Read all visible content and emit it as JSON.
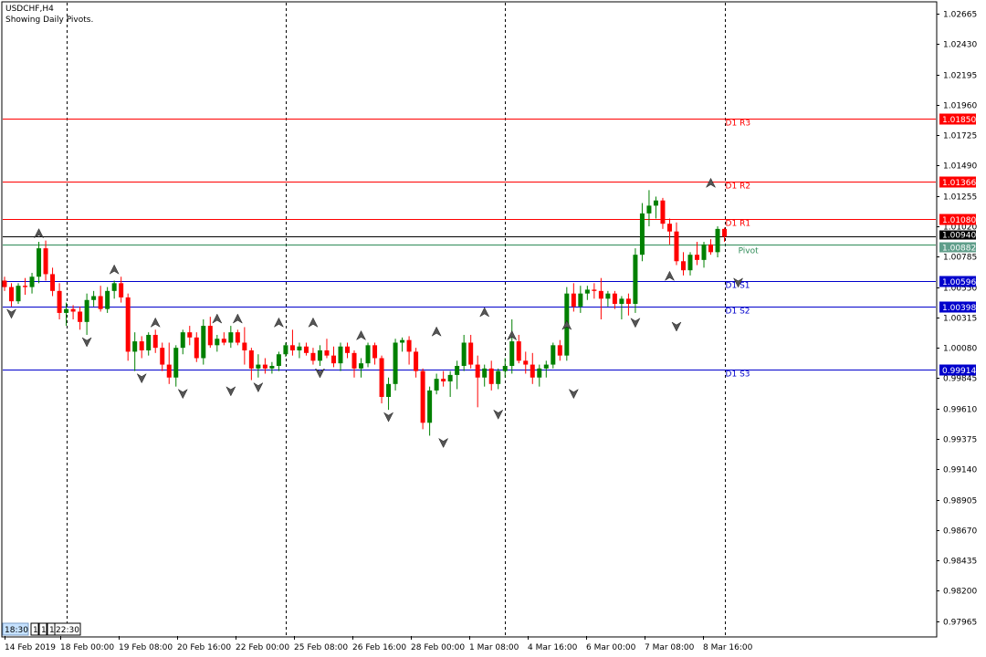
{
  "header": {
    "title": "USDCHF,H4",
    "subtitle": "Showing Daily Pivots."
  },
  "chart_data": {
    "type": "candlestick",
    "symbol": "USDCHF",
    "timeframe": "H4",
    "ylim": [
      0.9785,
      1.0275
    ],
    "y_ticks": [
      "1.02665",
      "1.02430",
      "1.02195",
      "1.01960",
      "1.01725",
      "1.01490",
      "1.01255",
      "1.01020",
      "1.00785",
      "1.00550",
      "1.00315",
      "1.00080",
      "0.99845",
      "0.99610",
      "0.99375",
      "0.99140",
      "0.98905",
      "0.98670",
      "0.98435",
      "0.98200",
      "0.97965"
    ],
    "x_ticks": [
      "14 Feb 2019",
      "18 Feb 00:00",
      "19 Feb 08:00",
      "20 Feb 16:00",
      "22 Feb 00:00",
      "25 Feb 08:00",
      "26 Feb 16:00",
      "28 Feb 00:00",
      "1 Mar 08:00",
      "4 Mar 16:00",
      "6 Mar 00:00",
      "7 Mar 08:00",
      "8 Mar 16:00"
    ],
    "bull_color": "#008000",
    "bear_color": "#ff0000",
    "candles": [
      [
        1.006,
        1.0063,
        1.0052,
        1.0055
      ],
      [
        1.0055,
        1.0058,
        1.004,
        1.0044
      ],
      [
        1.0044,
        1.0058,
        1.0042,
        1.0056
      ],
      [
        1.0056,
        1.0062,
        1.0049,
        1.0055
      ],
      [
        1.0055,
        1.0066,
        1.005,
        1.0063
      ],
      [
        1.0063,
        1.009,
        1.0058,
        1.0085
      ],
      [
        1.0085,
        1.0091,
        1.006,
        1.0065
      ],
      [
        1.0065,
        1.007,
        1.0048,
        1.0052
      ],
      [
        1.0052,
        1.0058,
        1.003,
        1.0035
      ],
      [
        1.0035,
        1.0043,
        1.0025,
        1.0038
      ],
      [
        1.0038,
        1.0041,
        1.003,
        1.0036
      ],
      [
        1.0036,
        1.004,
        1.0022,
        1.0028
      ],
      [
        1.0028,
        1.005,
        1.0018,
        1.0045
      ],
      [
        1.0045,
        1.0052,
        1.004,
        1.0048
      ],
      [
        1.0048,
        1.0056,
        1.0036,
        1.0038
      ],
      [
        1.0038,
        1.0055,
        1.0035,
        1.0052
      ],
      [
        1.0052,
        1.006,
        1.0046,
        1.0058
      ],
      [
        1.0058,
        1.0063,
        1.0043,
        1.0047
      ],
      [
        1.0047,
        1.005,
        0.9998,
        1.0005
      ],
      [
        1.0005,
        1.002,
        0.999,
        1.0013
      ],
      [
        1.0013,
        1.0017,
        1.0,
        1.0006
      ],
      [
        1.0006,
        1.002,
        1.0002,
        1.0018
      ],
      [
        1.0018,
        1.0022,
        1.0004,
        1.0008
      ],
      [
        1.0008,
        1.0012,
        0.999,
        0.9995
      ],
      [
        0.9995,
        1.0012,
        0.998,
        0.9985
      ],
      [
        0.9985,
        1.001,
        0.9978,
        1.0008
      ],
      [
        1.0008,
        1.0022,
        1.0003,
        1.002
      ],
      [
        1.002,
        1.0025,
        1.001,
        1.0016
      ],
      [
        1.0016,
        1.002,
        0.9997,
        1.0
      ],
      [
        1.0,
        1.003,
        0.9995,
        1.0025
      ],
      [
        1.0025,
        1.0032,
        1.0008,
        1.001
      ],
      [
        1.001,
        1.0018,
        1.0005,
        1.0015
      ],
      [
        1.0015,
        1.002,
        1.001,
        1.0012
      ],
      [
        1.0012,
        1.0025,
        1.0008,
        1.002
      ],
      [
        1.002,
        1.0022,
        1.001,
        1.0012
      ],
      [
        1.0012,
        1.0024,
        0.9995,
        1.0006
      ],
      [
        1.0006,
        1.0008,
        0.9983,
        0.9992
      ],
      [
        0.9992,
        1.0003,
        0.9985,
        0.9995
      ],
      [
        0.9995,
        1.0,
        0.9988,
        0.9992
      ],
      [
        0.9992,
        0.9997,
        0.9988,
        0.9994
      ],
      [
        0.9994,
        1.0005,
        0.999,
        1.0003
      ],
      [
        1.0003,
        1.0012,
        1.0001,
        1.001
      ],
      [
        1.001,
        1.0022,
        1.0002,
        1.0006
      ],
      [
        1.0006,
        1.0012,
        1.0,
        1.0009
      ],
      [
        1.0009,
        1.0012,
        1.0002,
        1.0004
      ],
      [
        1.0004,
        1.0008,
        0.9995,
        0.9998
      ],
      [
        0.9998,
        1.001,
        0.9994,
        1.0006
      ],
      [
        1.0006,
        1.0015,
        1.0,
        1.0002
      ],
      [
        1.0002,
        1.0009,
        0.9993,
        0.9996
      ],
      [
        0.9996,
        1.0012,
        0.999,
        1.0009
      ],
      [
        1.0009,
        1.0012,
        1.0,
        1.0004
      ],
      [
        1.0004,
        1.0006,
        0.9985,
        0.9992
      ],
      [
        0.9992,
        1.0,
        0.9985,
        0.9996
      ],
      [
        0.9996,
        1.0012,
        0.9993,
        1.001
      ],
      [
        1.001,
        1.0012,
        0.9995,
        1.0
      ],
      [
        1.0,
        1.0002,
        0.9965,
        0.997
      ],
      [
        0.997,
        0.9985,
        0.996,
        0.998
      ],
      [
        0.998,
        1.0015,
        0.9975,
        1.0012
      ],
      [
        1.0012,
        1.0016,
        1.0005,
        1.0014
      ],
      [
        1.0014,
        1.0017,
        0.9995,
        1.0005
      ],
      [
        1.0005,
        1.0008,
        0.9985,
        0.999
      ],
      [
        0.999,
        0.9992,
        0.9945,
        0.995
      ],
      [
        0.995,
        0.9978,
        0.994,
        0.9975
      ],
      [
        0.9975,
        0.9988,
        0.9972,
        0.9984
      ],
      [
        0.9984,
        0.999,
        0.9978,
        0.9982
      ],
      [
        0.9982,
        0.999,
        0.997,
        0.9987
      ],
      [
        0.9987,
        0.9998,
        0.9976,
        0.9994
      ],
      [
        0.9994,
        1.0018,
        0.999,
        1.0012
      ],
      [
        1.0012,
        1.0018,
        0.9992,
        0.9995
      ],
      [
        0.9995,
        1.0002,
        0.9962,
        0.9985
      ],
      [
        0.9985,
        0.9995,
        0.9978,
        0.9992
      ],
      [
        0.9992,
        0.9998,
        0.9975,
        0.998
      ],
      [
        0.998,
        0.9992,
        0.9976,
        0.999
      ],
      [
        0.999,
        1.0,
        0.9985,
        0.9994
      ],
      [
        0.9994,
        1.003,
        0.9988,
        1.0013
      ],
      [
        1.0013,
        1.0018,
        0.9996,
        0.9998
      ],
      [
        0.9998,
        1.0005,
        0.9988,
        0.9995
      ],
      [
        0.9995,
        1.0004,
        0.998,
        0.9985
      ],
      [
        0.9985,
        0.9995,
        0.9978,
        0.9992
      ],
      [
        0.9992,
        0.9998,
        0.9985,
        0.9995
      ],
      [
        0.9995,
        1.0012,
        0.9992,
        1.001
      ],
      [
        1.001,
        1.0014,
        0.9998,
        1.0002
      ],
      [
        1.0002,
        1.0055,
        0.9998,
        1.005
      ],
      [
        1.005,
        1.0058,
        1.0036,
        1.004
      ],
      [
        1.004,
        1.0056,
        1.0035,
        1.005
      ],
      [
        1.005,
        1.0056,
        1.0045,
        1.0053
      ],
      [
        1.0053,
        1.0058,
        1.0046,
        1.0052
      ],
      [
        1.0052,
        1.0062,
        1.003,
        1.0046
      ],
      [
        1.0046,
        1.0052,
        1.004,
        1.005
      ],
      [
        1.005,
        1.0052,
        1.0038,
        1.0042
      ],
      [
        1.0042,
        1.0048,
        1.003,
        1.0046
      ],
      [
        1.0046,
        1.005,
        1.0033,
        1.0042
      ],
      [
        1.0042,
        1.0085,
        1.0035,
        1.008
      ],
      [
        1.008,
        1.012,
        1.0075,
        1.0112
      ],
      [
        1.0112,
        1.013,
        1.0102,
        1.0118
      ],
      [
        1.0118,
        1.0125,
        1.0108,
        1.0122
      ],
      [
        1.0122,
        1.0124,
        1.01,
        1.0104
      ],
      [
        1.0104,
        1.0108,
        1.0088,
        1.0098
      ],
      [
        1.0098,
        1.0105,
        1.0072,
        1.0075
      ],
      [
        1.0075,
        1.0082,
        1.0064,
        1.0068
      ],
      [
        1.0068,
        1.0082,
        1.0064,
        1.008
      ],
      [
        1.008,
        1.009,
        1.0072,
        1.0076
      ],
      [
        1.0076,
        1.009,
        1.007,
        1.0088
      ],
      [
        1.0088,
        1.0092,
        1.008,
        1.0082
      ],
      [
        1.0082,
        1.0102,
        1.0078,
        1.01
      ],
      [
        1.01,
        1.0101,
        1.009,
        1.0094
      ]
    ],
    "fractals_up": [
      [
        5,
        1.0091
      ],
      [
        16,
        1.0063
      ],
      [
        22,
        1.0022
      ],
      [
        31,
        1.0025
      ],
      [
        34,
        1.0025
      ],
      [
        40,
        1.0022
      ],
      [
        45,
        1.0022
      ],
      [
        52,
        1.0012
      ],
      [
        63,
        1.0015
      ],
      [
        70,
        1.003
      ],
      [
        74,
        1.0012
      ],
      [
        82,
        1.002
      ],
      [
        97,
        1.0058
      ],
      [
        103,
        1.013
      ]
    ],
    "fractals_down": [
      [
        1,
        1.004
      ],
      [
        12,
        1.0018
      ],
      [
        20,
        0.999
      ],
      [
        26,
        0.9978
      ],
      [
        33,
        0.998
      ],
      [
        37,
        0.9983
      ],
      [
        46,
        0.9994
      ],
      [
        56,
        0.996
      ],
      [
        64,
        0.994
      ],
      [
        72,
        0.9962
      ],
      [
        83,
        0.9978
      ],
      [
        92,
        1.0033
      ],
      [
        98,
        1.003
      ],
      [
        107,
        1.0064
      ]
    ],
    "pivot_lines": [
      {
        "name": "D1 R3",
        "value": "1.01850",
        "color": "#ff0000"
      },
      {
        "name": "D1 R2",
        "value": "1.01366",
        "color": "#ff0000"
      },
      {
        "name": "D1 R1",
        "value": "1.01080",
        "color": "#ff0000"
      },
      {
        "name": "D1 S1",
        "value": "1.00596",
        "color": "#0000cc"
      },
      {
        "name": "D1 S2",
        "value": "1.00398",
        "color": "#0000cc"
      },
      {
        "name": "D1 S3",
        "value": "0.99914",
        "color": "#0000cc"
      }
    ],
    "pivot_label": "Pivot",
    "bid_label": "1.00940",
    "pivot_value_label": "1.00882",
    "bid_price": 1.0094,
    "pivot_price": 1.00882,
    "bid_line_color": "#000000",
    "pivot_line_color": "#2e8b57"
  },
  "bottom_controls": {
    "time": "18:30",
    "btn1": "1",
    "btn2": "1",
    "btn3": "1",
    "time2": "22:30"
  }
}
